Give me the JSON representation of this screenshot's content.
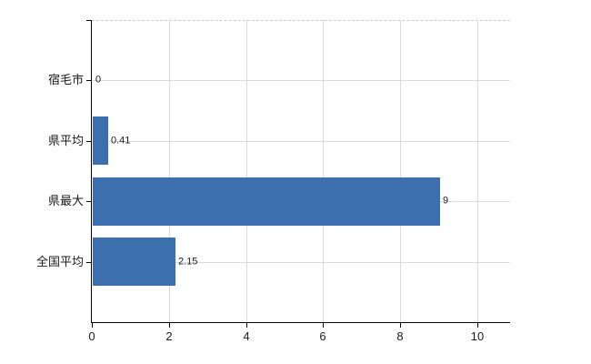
{
  "chart_data": {
    "type": "bar",
    "orientation": "horizontal",
    "title": "",
    "categories": [
      "宿毛市",
      "県平均",
      "県最大",
      "全国平均"
    ],
    "values": [
      0,
      0.41,
      9,
      2.15
    ],
    "value_labels": [
      "0",
      "0.41",
      "9",
      "2.15"
    ],
    "x_tick_labels": [
      "0",
      "2",
      "4",
      "6",
      "8",
      "10"
    ],
    "x_tick_values": [
      0,
      2,
      4,
      6,
      8,
      10
    ],
    "xlim": [
      0,
      10.85
    ],
    "grid": true,
    "legend": "none",
    "colors": {
      "bar": "#3b6fae",
      "grid_line": "#d7dcd7",
      "plot_top_border": "#c9c9c9",
      "axis_line": "#000000",
      "text": "#1a1a1a",
      "background": "#ffffff"
    }
  }
}
